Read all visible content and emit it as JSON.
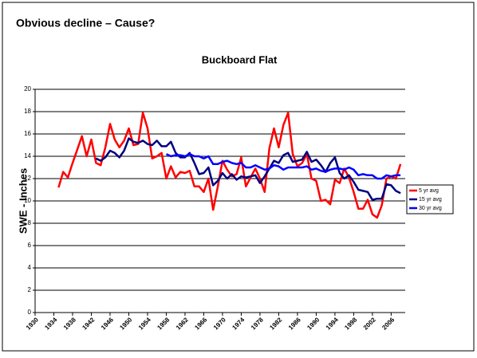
{
  "slide_title": "Obvious decline – Cause?",
  "chart_data": {
    "type": "line",
    "title": "Buckboard Flat",
    "y_label": "SWE - Inches",
    "x": [
      1935,
      1936,
      1937,
      1938,
      1939,
      1940,
      1941,
      1942,
      1943,
      1944,
      1945,
      1946,
      1947,
      1948,
      1949,
      1950,
      1951,
      1952,
      1953,
      1954,
      1955,
      1956,
      1957,
      1958,
      1959,
      1960,
      1961,
      1962,
      1963,
      1964,
      1965,
      1966,
      1967,
      1968,
      1969,
      1970,
      1971,
      1972,
      1973,
      1974,
      1975,
      1976,
      1977,
      1978,
      1979,
      1980,
      1981,
      1982,
      1983,
      1984,
      1985,
      1986,
      1987,
      1988,
      1989,
      1990,
      1991,
      1992,
      1993,
      1994,
      1995,
      1996,
      1997,
      1998,
      1999,
      2000,
      2001,
      2002,
      2003,
      2004,
      2005,
      2006,
      2007,
      2008
    ],
    "series": [
      {
        "name": "5 yr avg",
        "color": "#ff0000",
        "values": [
          11.2,
          12.6,
          12.1,
          13.4,
          14.6,
          15.8,
          14.0,
          15.5,
          13.4,
          13.2,
          14.8,
          16.9,
          15.5,
          14.8,
          15.4,
          16.5,
          15.0,
          15.1,
          17.9,
          16.5,
          13.8,
          14.0,
          14.3,
          12.0,
          13.1,
          12.1,
          12.6,
          12.5,
          12.7,
          11.3,
          11.3,
          10.8,
          12.0,
          9.2,
          11.3,
          13.6,
          12.8,
          12.2,
          12.4,
          13.9,
          11.3,
          12.1,
          12.9,
          12.0,
          10.8,
          14.7,
          16.5,
          14.8,
          16.8,
          17.9,
          14.2,
          13.1,
          13.4,
          14.2,
          12.0,
          11.8,
          10.0,
          10.1,
          9.7,
          11.9,
          11.6,
          12.9,
          12.1,
          10.8,
          9.3,
          9.3,
          10.1,
          8.8,
          8.5,
          9.6,
          12.0,
          12.2,
          12.0,
          13.3
        ]
      },
      {
        "name": "15 yr avg",
        "color": "#000080",
        "values": [
          null,
          null,
          null,
          null,
          null,
          null,
          null,
          null,
          13.8,
          13.6,
          13.9,
          14.5,
          14.3,
          13.9,
          14.5,
          15.6,
          15.3,
          15.2,
          15.4,
          15.1,
          15.0,
          15.4,
          14.9,
          14.9,
          15.3,
          14.3,
          13.9,
          13.9,
          14.3,
          13.4,
          12.4,
          12.5,
          13.0,
          11.4,
          11.8,
          12.5,
          12.0,
          12.4,
          11.9,
          12.2,
          12.1,
          12.2,
          12.3,
          11.6,
          12.2,
          12.9,
          13.6,
          13.4,
          14.1,
          14.3,
          13.5,
          13.6,
          13.7,
          14.4,
          13.5,
          13.7,
          13.2,
          12.6,
          13.4,
          13.9,
          12.5,
          12.0,
          12.3,
          11.7,
          11.0,
          10.9,
          10.8,
          10.1,
          10.2,
          10.2,
          11.5,
          11.4,
          10.9,
          10.7
        ]
      },
      {
        "name": "30 yr avg",
        "color": "#0000ff",
        "values": [
          null,
          null,
          null,
          null,
          null,
          null,
          null,
          null,
          null,
          null,
          null,
          null,
          null,
          null,
          null,
          null,
          null,
          null,
          null,
          null,
          null,
          null,
          null,
          14.2,
          14.0,
          14.1,
          14.1,
          14.0,
          14.2,
          14.0,
          14.0,
          13.8,
          14.0,
          13.3,
          13.3,
          13.5,
          13.6,
          13.4,
          13.3,
          13.4,
          13.0,
          13.0,
          13.2,
          13.0,
          12.8,
          12.9,
          13.2,
          13.1,
          12.8,
          13.0,
          13.0,
          13.0,
          13.0,
          13.1,
          12.8,
          12.9,
          12.7,
          12.6,
          12.8,
          12.9,
          12.9,
          12.8,
          13.0,
          12.8,
          12.3,
          12.4,
          12.3,
          12.3,
          12.0,
          12.0,
          12.3,
          12.2,
          12.3,
          12.3
        ]
      }
    ],
    "xlim": [
      1930,
      2009
    ],
    "xticks": [
      1930,
      1934,
      1938,
      1942,
      1946,
      1950,
      1954,
      1958,
      1962,
      1966,
      1970,
      1974,
      1978,
      1982,
      1986,
      1990,
      1994,
      1998,
      2002,
      2006
    ],
    "ylim": [
      0,
      20
    ],
    "yticks": [
      0,
      2,
      4,
      6,
      8,
      10,
      12,
      14,
      16,
      18,
      20
    ],
    "grid": true,
    "legend": "right"
  }
}
